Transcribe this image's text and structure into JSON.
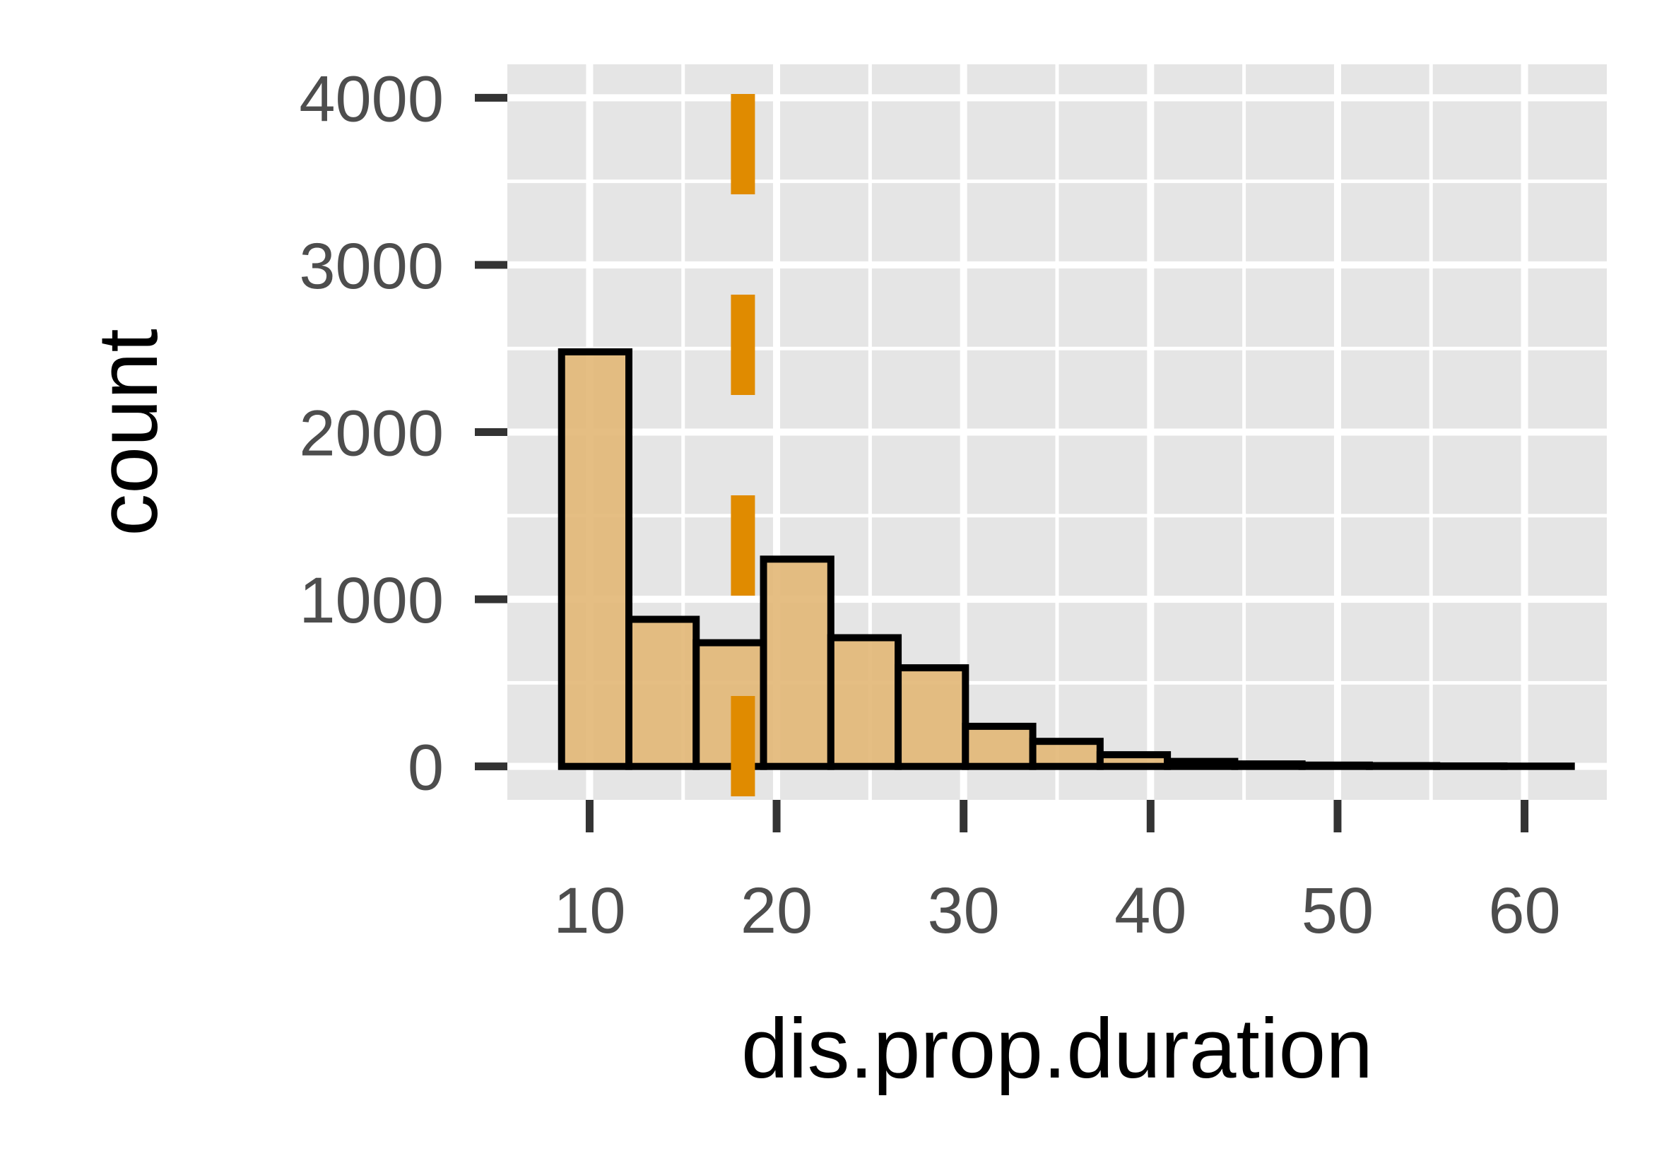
{
  "chart_data": {
    "type": "bar",
    "subtype": "histogram",
    "xlabel": "dis.prop.duration",
    "ylabel": "count",
    "x_ticks": [
      10,
      20,
      30,
      40,
      50,
      60
    ],
    "y_ticks": [
      0,
      1000,
      2000,
      3000,
      4000
    ],
    "xlim": [
      5.6,
      64.4
    ],
    "ylim": [
      -200,
      4200
    ],
    "bins": [
      {
        "x0": 8.5,
        "x1": 12.1,
        "count": 2480
      },
      {
        "x0": 12.1,
        "x1": 15.7,
        "count": 880
      },
      {
        "x0": 15.7,
        "x1": 19.3,
        "count": 740
      },
      {
        "x0": 19.3,
        "x1": 22.9,
        "count": 1240
      },
      {
        "x0": 22.9,
        "x1": 26.5,
        "count": 770
      },
      {
        "x0": 26.5,
        "x1": 30.1,
        "count": 590
      },
      {
        "x0": 30.1,
        "x1": 33.7,
        "count": 240
      },
      {
        "x0": 33.7,
        "x1": 37.3,
        "count": 150
      },
      {
        "x0": 37.3,
        "x1": 40.9,
        "count": 70
      },
      {
        "x0": 40.9,
        "x1": 44.5,
        "count": 30
      },
      {
        "x0": 44.5,
        "x1": 48.1,
        "count": 15
      },
      {
        "x0": 48.1,
        "x1": 51.7,
        "count": 8
      },
      {
        "x0": 51.7,
        "x1": 55.3,
        "count": 5
      },
      {
        "x0": 55.3,
        "x1": 58.9,
        "count": 3
      },
      {
        "x0": 58.9,
        "x1": 62.5,
        "count": 2
      }
    ],
    "reference_line": {
      "x": 18.2,
      "style": "dashed"
    },
    "grid": true,
    "colors": {
      "panel": "#e5e5e5",
      "bar_fill": "#e3b978",
      "bar_stroke": "#000000",
      "reference_line": "#e08b00",
      "tick_mark": "#333333"
    }
  }
}
